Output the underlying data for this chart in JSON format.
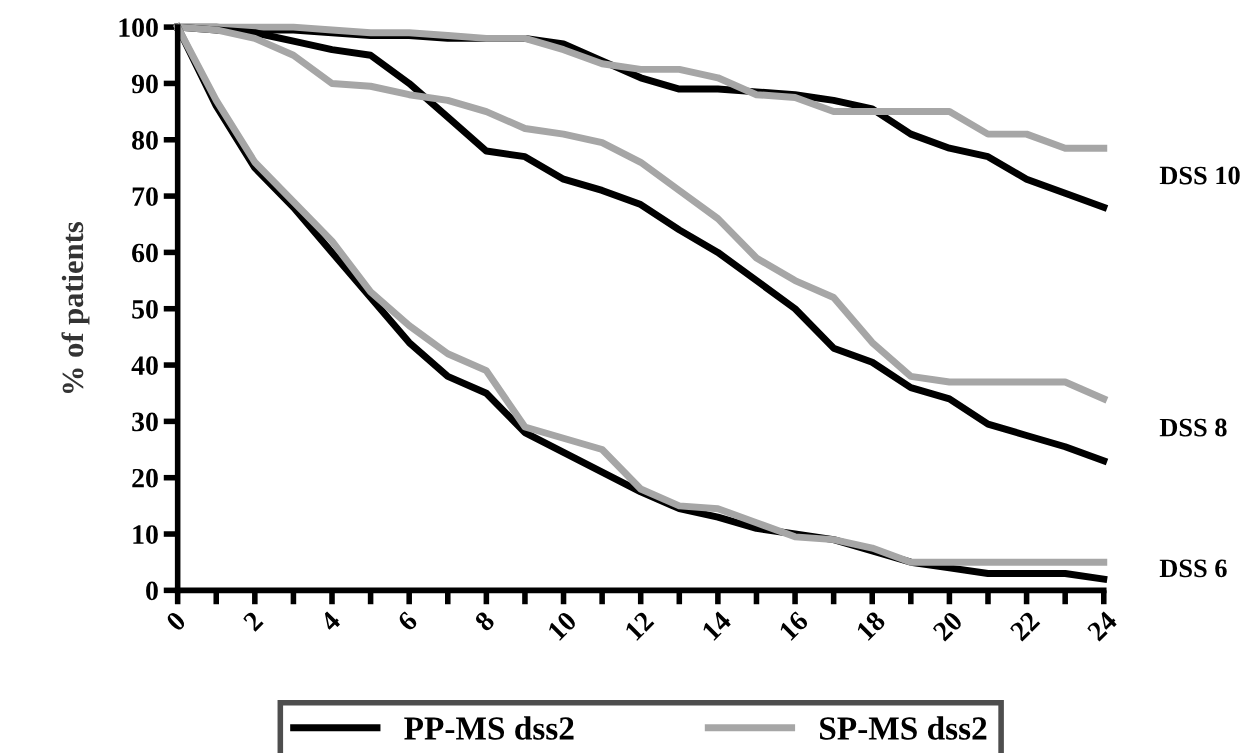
{
  "chart_data": {
    "type": "line",
    "ylabel": "% of patients",
    "x": [
      0,
      1,
      2,
      3,
      4,
      5,
      6,
      7,
      8,
      9,
      10,
      11,
      12,
      13,
      14,
      15,
      16,
      17,
      18,
      19,
      20,
      21,
      22,
      23,
      24
    ],
    "series": [
      {
        "name": "PP-MS dss2",
        "color": "#000000",
        "values": [
          100,
          100,
          99.5,
          99.5,
          99,
          98.5,
          98.5,
          98,
          98,
          98,
          97,
          94,
          91,
          89,
          89,
          88.5,
          88,
          87,
          85.5,
          81,
          78.5,
          77,
          73,
          70.5,
          68
        ]
      },
      {
        "name": "SP-MS dss2",
        "color": "#a6a6a6",
        "values": [
          100,
          100,
          100,
          100,
          99.5,
          99,
          99,
          98.5,
          98,
          98,
          96,
          93.5,
          92.5,
          92.5,
          91,
          88,
          87.5,
          85,
          85,
          85,
          85,
          81,
          81,
          78.5,
          78.5
        ]
      },
      {
        "color": "#000000",
        "values": [
          100,
          99.5,
          99,
          97.5,
          96,
          95,
          90,
          84,
          78,
          77,
          73,
          71,
          68.5,
          64,
          60,
          55,
          50,
          43,
          40.5,
          36,
          34,
          29.5,
          27.5,
          25.5,
          23
        ]
      },
      {
        "color": "#a6a6a6",
        "values": [
          100,
          99.5,
          98,
          95,
          90,
          89.5,
          88,
          87,
          85,
          82,
          81,
          79.5,
          76,
          71,
          66,
          59,
          55,
          52,
          44,
          38,
          37,
          37,
          37,
          37,
          34
        ]
      },
      {
        "color": "#000000",
        "values": [
          100,
          86,
          75,
          68,
          60,
          52,
          44,
          38,
          35,
          28,
          24.5,
          21,
          17.5,
          14.5,
          13,
          11,
          10,
          9,
          7,
          5,
          4,
          3,
          3,
          3,
          2
        ]
      },
      {
        "color": "#a6a6a6",
        "values": [
          100,
          87,
          76,
          69,
          62,
          53,
          47,
          42,
          39,
          29,
          27,
          25,
          18,
          15,
          14.5,
          12,
          9.5,
          9,
          7.5,
          5,
          5,
          5,
          5,
          5,
          5
        ]
      }
    ],
    "annotations": [
      "DSS 10",
      "DSS 8",
      "DSS 6"
    ],
    "xlim": [
      0,
      24
    ],
    "xticks": [
      0,
      {
        "value": 1,
        "label": null
      },
      2,
      {
        "value": 3,
        "label": null
      },
      4,
      {
        "value": 5,
        "label": null
      },
      6,
      {
        "value": 7,
        "label": null
      },
      8,
      {
        "value": 9,
        "label": null
      },
      10,
      {
        "value": 11,
        "label": null
      },
      12,
      {
        "value": 13,
        "label": null
      },
      14,
      {
        "value": 15,
        "label": null
      },
      16,
      {
        "value": 17,
        "label": null
      },
      18,
      {
        "value": 19,
        "label": null
      },
      20,
      {
        "value": 21,
        "label": null
      },
      22,
      {
        "value": 23,
        "label": null
      },
      24
    ],
    "ylim": [
      0,
      100
    ],
    "yticks": [
      0,
      10,
      20,
      30,
      40,
      50,
      60,
      70,
      80,
      90,
      100
    ],
    "grid": false,
    "legend": "bottom",
    "marker": "none",
    "line_style": "solid"
  }
}
